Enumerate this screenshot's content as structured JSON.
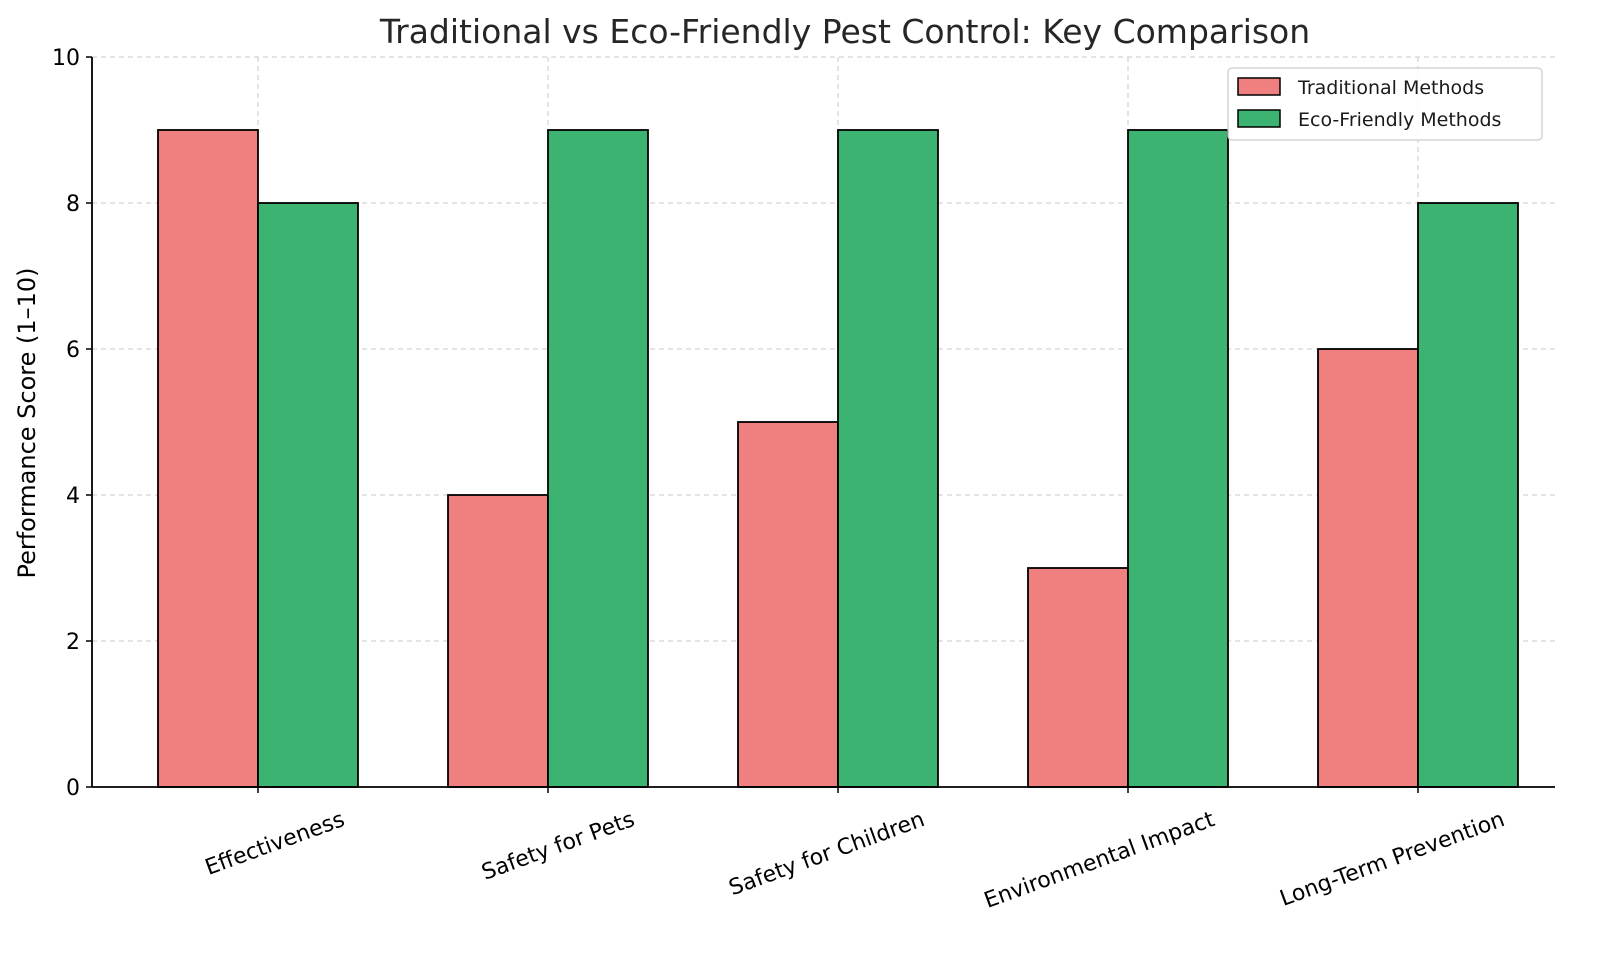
{
  "chart_data": {
    "type": "bar",
    "title": "Traditional vs Eco-Friendly Pest Control: Key Comparison",
    "xlabel": "",
    "ylabel": "Performance Score (1–10)",
    "ylim": [
      0,
      10
    ],
    "yticks": [
      "0",
      "2",
      "4",
      "6",
      "8",
      "10"
    ],
    "grid": true,
    "legend_position": "top-right",
    "categories": [
      "Effectiveness",
      "Safety for Pets",
      "Safety for Children",
      "Environmental Impact",
      "Long-Term Prevention"
    ],
    "series": [
      {
        "name": "Traditional Methods",
        "color": "#f08080",
        "values": [
          9,
          4,
          5,
          3,
          6
        ]
      },
      {
        "name": "Eco-Friendly Methods",
        "color": "#3cb371",
        "values": [
          8,
          9,
          9,
          9,
          8
        ]
      }
    ]
  }
}
